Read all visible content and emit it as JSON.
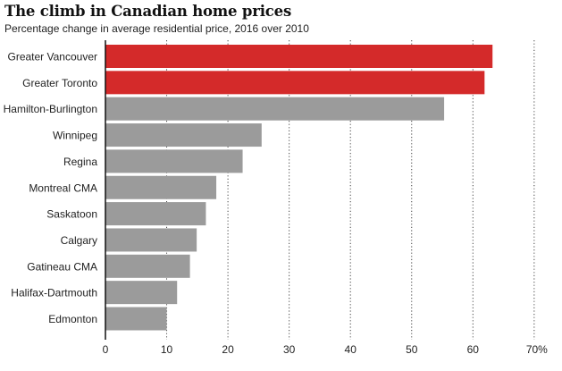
{
  "chart_data": {
    "type": "bar",
    "orientation": "horizontal",
    "title": "The climb in Canadian home prices",
    "subtitle": "Percentage change in average residential price, 2016 over 2010",
    "xlabel": "",
    "ylabel": "",
    "categories": [
      "Greater Vancouver",
      "Greater Toronto",
      "Hamilton-Burlington",
      "Winnipeg",
      "Regina",
      "Montreal CMA",
      "Saskatoon",
      "Calgary",
      "Gatineau CMA",
      "Halifax-Dartmouth",
      "Edmonton"
    ],
    "values": [
      63.2,
      61.9,
      55.3,
      25.5,
      22.4,
      18.1,
      16.4,
      14.9,
      13.8,
      11.7,
      10.0
    ],
    "highlight": [
      true,
      true,
      false,
      false,
      false,
      false,
      false,
      false,
      false,
      false,
      false
    ],
    "xlim": [
      0,
      70
    ],
    "xticks": [
      0,
      10,
      20,
      30,
      40,
      50,
      60,
      70
    ],
    "xtick_labels": [
      "0",
      "10",
      "20",
      "30",
      "40",
      "50",
      "60",
      "70%"
    ],
    "grid": "vertical dotted",
    "colors": {
      "highlight": "#d42a2a",
      "default": "#9b9b9b",
      "grid": "#444444",
      "axis": "#111111"
    }
  }
}
